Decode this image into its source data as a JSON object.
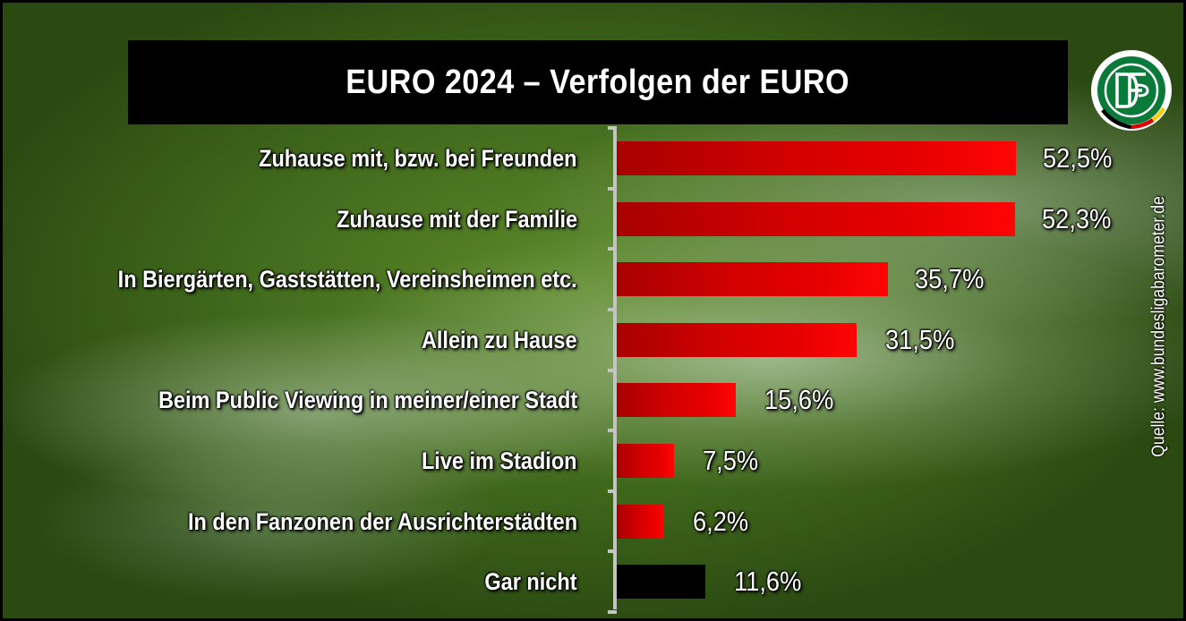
{
  "chart_data": {
    "type": "bar",
    "orientation": "horizontal",
    "title": "EURO 2024 – Verfolgen der EURO",
    "categories": [
      "Zuhause mit, bzw. bei Freunden",
      "Zuhause mit der Familie",
      "In Biergärten, Gaststätten, Vereinsheimen etc.",
      "Allein zu Hause",
      "Beim Public Viewing in meiner/einer Stadt",
      "Live im Stadion",
      "In den Fanzonen der Ausrichterstädten",
      "Gar nicht"
    ],
    "values": [
      52.5,
      52.3,
      35.7,
      31.5,
      15.6,
      7.5,
      6.2,
      11.6
    ],
    "value_labels": [
      "52,5%",
      "52,3%",
      "35,7%",
      "31,5%",
      "15,6%",
      "7,5%",
      "6,2%",
      "11,6%"
    ],
    "unit": "%",
    "xlim": [
      0,
      60
    ],
    "bar_colors": [
      "#e60000",
      "#e60000",
      "#e60000",
      "#e60000",
      "#e60000",
      "#e60000",
      "#e60000",
      "#000000"
    ],
    "grid": false,
    "legend": "none"
  },
  "source": "Quelle: www.bundesligabarometer.de",
  "logo": {
    "name": "dfb-logo-icon",
    "text": "DFB",
    "colors": [
      "#0a7a3a",
      "#000000",
      "#dd0000",
      "#ffcc00"
    ]
  }
}
